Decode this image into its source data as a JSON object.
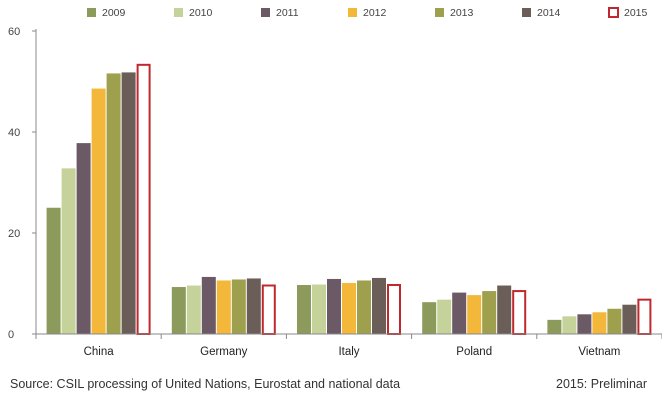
{
  "chart_data": {
    "type": "bar",
    "title": "",
    "xlabel": "",
    "ylabel": "",
    "ylim": [
      0,
      60
    ],
    "yticks": [
      0,
      20,
      40,
      60
    ],
    "grid": false,
    "legend_position": "top",
    "categories": [
      "China",
      "Germany",
      "Italy",
      "Poland",
      "Vietnam"
    ],
    "series": [
      {
        "name": "2009",
        "color": "#8c9a5b",
        "values": [
          25.0,
          9.3,
          9.7,
          6.3,
          2.8
        ]
      },
      {
        "name": "2010",
        "color": "#c5d39a",
        "values": [
          32.8,
          9.6,
          9.8,
          6.8,
          3.5
        ]
      },
      {
        "name": "2011",
        "color": "#6b5a66",
        "values": [
          37.8,
          11.3,
          10.9,
          8.2,
          3.9
        ]
      },
      {
        "name": "2012",
        "color": "#f3b73a",
        "values": [
          48.6,
          10.6,
          10.1,
          7.7,
          4.3
        ]
      },
      {
        "name": "2013",
        "color": "#9fa04e",
        "values": [
          51.6,
          10.8,
          10.6,
          8.5,
          5.0
        ]
      },
      {
        "name": "2014",
        "color": "#6b5e58",
        "values": [
          51.8,
          11.0,
          11.1,
          9.6,
          5.8
        ]
      },
      {
        "name": "2015",
        "color": "#c0282d",
        "outline": true,
        "values": [
          53.5,
          9.8,
          9.9,
          8.7,
          7.0
        ]
      }
    ]
  },
  "footer": {
    "source": "Source: CSIL processing of United Nations, Eurostat and national data",
    "note": "2015: Preliminar"
  }
}
